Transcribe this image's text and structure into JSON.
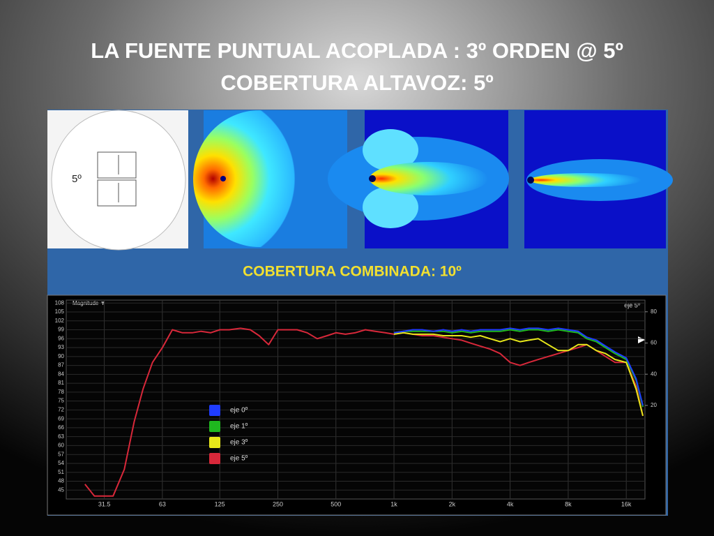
{
  "slide": {
    "title_lines": [
      "LA FUENTE PUNTUAL ACOPLADA : 3º ORDEN @ 5º",
      "COBERTURA ALTAVOZ: 5º"
    ],
    "panel_label": "5º",
    "subtitle": "COBERTURA COMBINADA: 10º"
  },
  "chart_data": {
    "type": "line",
    "corner_label": "Magnitude ▼",
    "axis_note": "eje 5º",
    "log_x": true,
    "grid": true,
    "x": [
      25,
      28,
      31.5,
      35,
      40,
      45,
      50,
      56,
      63,
      71,
      80,
      90,
      100,
      112,
      125,
      140,
      160,
      180,
      200,
      224,
      250,
      280,
      315,
      355,
      400,
      450,
      500,
      560,
      630,
      710,
      800,
      900,
      1000,
      1120,
      1250,
      1400,
      1600,
      1800,
      2000,
      2240,
      2500,
      2800,
      3150,
      3550,
      4000,
      4500,
      5000,
      5600,
      6300,
      7100,
      8000,
      9000,
      10000,
      11200,
      12500,
      14000,
      16000,
      18000,
      19500
    ],
    "xlim": [
      20,
      20000
    ],
    "xticks": [
      31.5,
      63,
      125,
      250,
      500,
      {
        "value": 1000,
        "label": "1k"
      },
      {
        "value": 2000,
        "label": "2k"
      },
      {
        "value": 4000,
        "label": "4k"
      },
      {
        "value": 8000,
        "label": "8k"
      },
      {
        "value": 16000,
        "label": "16k"
      }
    ],
    "ylim": [
      42,
      109
    ],
    "yticks": [
      45,
      48,
      51,
      54,
      57,
      60,
      63,
      66,
      69,
      72,
      75,
      78,
      81,
      84,
      87,
      90,
      93,
      96,
      99,
      102,
      105,
      108
    ],
    "y2lim": [
      -40,
      87.5
    ],
    "y2ticks": [
      20,
      40,
      60,
      80
    ],
    "series": [
      {
        "name": "eje 0º",
        "color": "#1f3cff",
        "values": [
          null,
          null,
          null,
          null,
          null,
          null,
          null,
          null,
          null,
          null,
          null,
          null,
          null,
          null,
          null,
          null,
          null,
          null,
          null,
          null,
          null,
          null,
          null,
          null,
          null,
          null,
          null,
          null,
          null,
          null,
          null,
          null,
          98,
          98.5,
          99,
          99,
          98.5,
          99,
          98.5,
          99,
          98.5,
          99,
          99,
          99,
          99.5,
          99,
          99.5,
          99.5,
          99,
          99.5,
          99,
          98.5,
          96.5,
          95.5,
          93.5,
          91.5,
          89.5,
          82.5,
          73.5
        ]
      },
      {
        "name": "eje 1º",
        "color": "#1fb81f",
        "values": [
          null,
          null,
          null,
          null,
          null,
          null,
          null,
          null,
          null,
          null,
          null,
          null,
          null,
          null,
          null,
          null,
          null,
          null,
          null,
          null,
          null,
          null,
          null,
          null,
          null,
          null,
          null,
          null,
          null,
          null,
          null,
          null,
          98,
          98.5,
          98.5,
          98.5,
          98.5,
          98.5,
          98,
          98.5,
          98,
          98.5,
          98.5,
          98.5,
          99,
          98.5,
          99,
          99,
          98.5,
          99,
          98.5,
          98,
          96,
          95,
          93,
          91,
          89,
          82,
          73
        ]
      },
      {
        "name": "eje 3º",
        "color": "#e8e81a",
        "values": [
          null,
          null,
          null,
          null,
          null,
          null,
          null,
          null,
          null,
          null,
          null,
          null,
          null,
          null,
          null,
          null,
          null,
          null,
          null,
          null,
          null,
          null,
          null,
          null,
          null,
          null,
          null,
          null,
          null,
          null,
          null,
          null,
          97.5,
          98,
          97.5,
          97.5,
          97.5,
          97,
          97,
          97,
          96.5,
          97,
          96,
          95,
          96,
          95,
          95.5,
          96,
          94,
          92,
          92,
          94,
          94,
          92,
          91,
          89,
          88,
          79,
          70
        ]
      },
      {
        "name": "eje 5º",
        "color": "#d8283a",
        "values": [
          47,
          43,
          43,
          43,
          52,
          68,
          79,
          88,
          93,
          99,
          98,
          98,
          98.5,
          98,
          99,
          99,
          99.5,
          99,
          97,
          94,
          99,
          99,
          99,
          98,
          96,
          97,
          98,
          97.5,
          98,
          99,
          98.5,
          98,
          97.5,
          98,
          97.5,
          97,
          97,
          96.5,
          96,
          95.5,
          94.5,
          93.5,
          92.5,
          91,
          88,
          87,
          88,
          89,
          90,
          91,
          92,
          93,
          94,
          92,
          90,
          88,
          88,
          80,
          70
        ]
      }
    ]
  }
}
